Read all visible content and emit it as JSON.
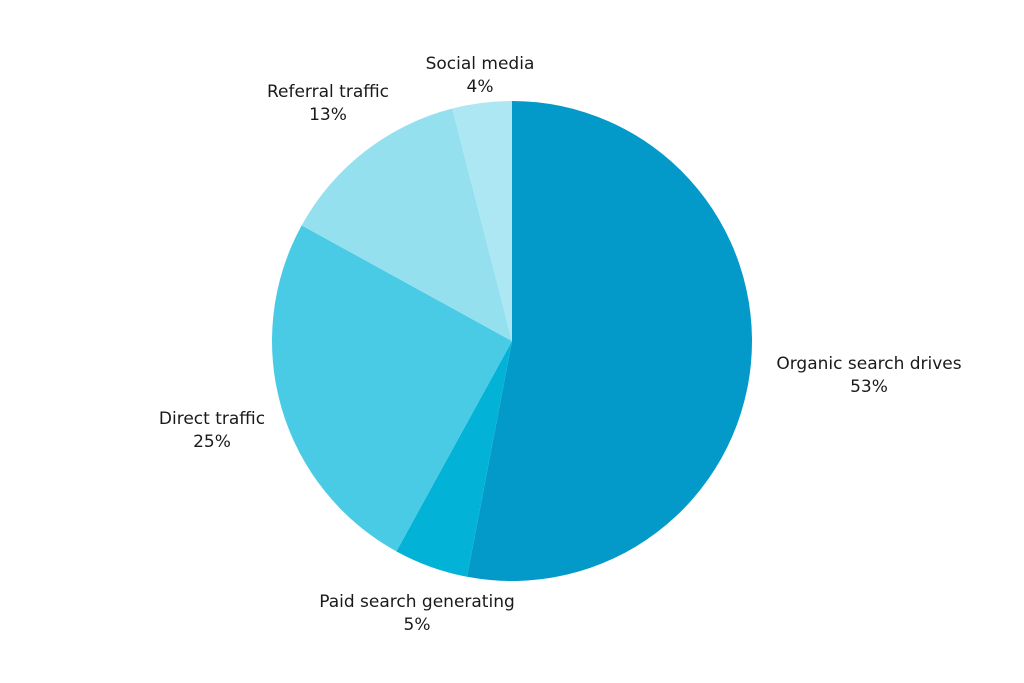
{
  "chart_data": {
    "type": "pie",
    "start": "top",
    "direction": "clockwise",
    "slices": [
      {
        "name": "Organic search drives",
        "value": 53,
        "label": "53%",
        "color": "#0399c9"
      },
      {
        "name": "Paid search generating",
        "value": 5,
        "label": "5%",
        "color": "#02b3d7"
      },
      {
        "name": "Direct traffic",
        "value": 25,
        "label": "25%",
        "color": "#4acbe5"
      },
      {
        "name": "Referral traffic",
        "value": 13,
        "label": "13%",
        "color": "#94e0ef"
      },
      {
        "name": "Social media",
        "value": 4,
        "label": "4%",
        "color": "#ade7f3"
      }
    ]
  }
}
